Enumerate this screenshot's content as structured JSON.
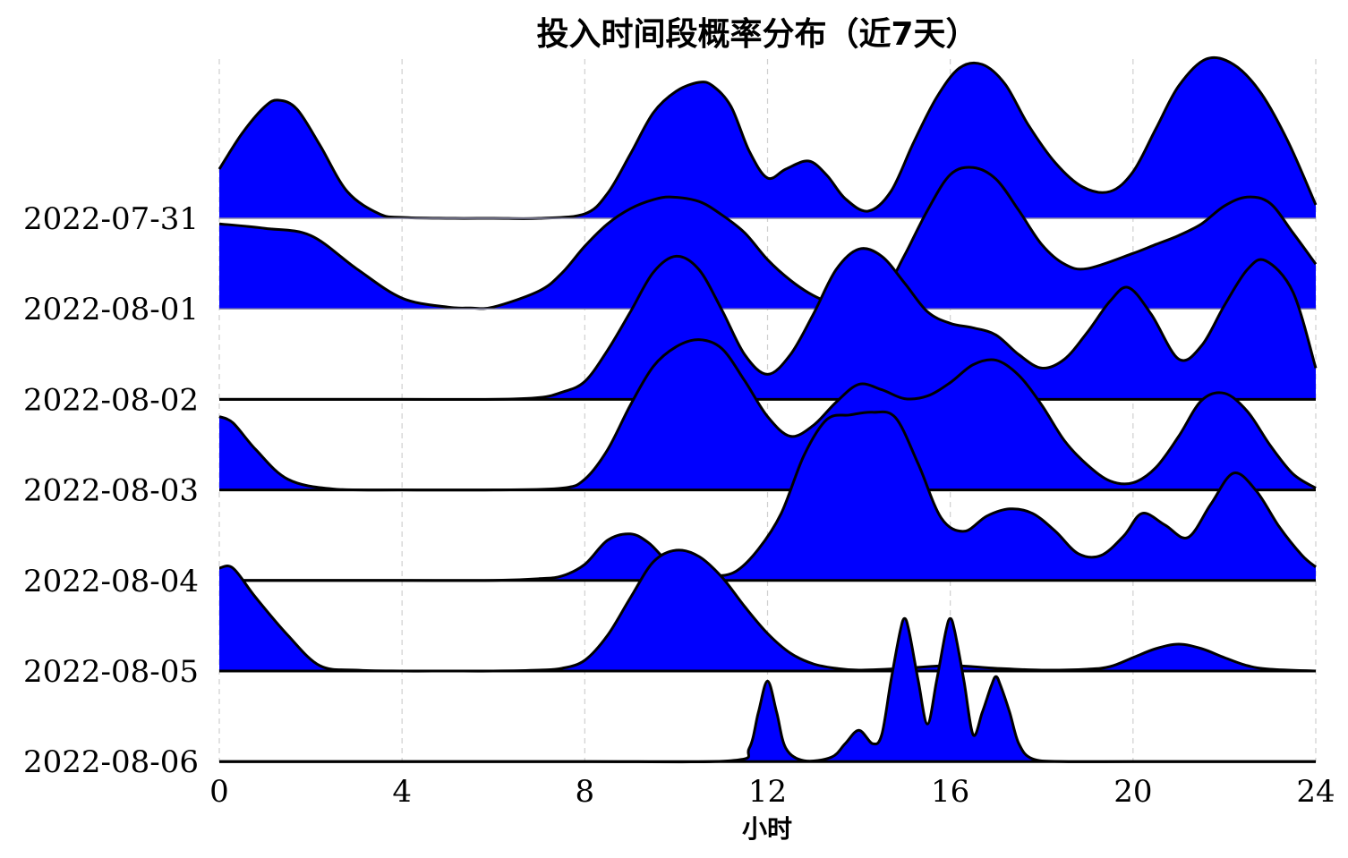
{
  "chart_data": {
    "type": "ridgeline",
    "title": "投入时间段概率分布（近7天）",
    "xlabel": "小时",
    "ylabel": "",
    "xlim": [
      0,
      24
    ],
    "x_ticks": [
      0,
      4,
      8,
      12,
      16,
      20,
      24
    ],
    "grid": "vertical dashed",
    "fill_color": "#0000ff",
    "line_color": "#000000",
    "series": [
      {
        "name": "2022-07-31",
        "x": [
          0,
          0.5,
          1,
          1.3,
          1.7,
          2.2,
          2.8,
          3.5,
          4,
          5,
          6,
          7,
          8,
          8.5,
          9,
          9.5,
          10,
          10.5,
          10.8,
          11.2,
          11.6,
          12,
          12.4,
          12.9,
          13.3,
          13.7,
          14.2,
          14.7,
          15.2,
          15.7,
          16.2,
          16.7,
          17.2,
          17.7,
          18.3,
          18.9,
          19.5,
          20,
          20.5,
          21,
          21.6,
          22.2,
          22.8,
          23.4,
          24
        ],
        "y": [
          0.55,
          0.95,
          1.25,
          1.32,
          1.22,
          0.82,
          0.3,
          0.05,
          0.01,
          0,
          0,
          0,
          0.05,
          0.28,
          0.72,
          1.18,
          1.42,
          1.52,
          1.48,
          1.25,
          0.75,
          0.45,
          0.55,
          0.64,
          0.48,
          0.22,
          0.08,
          0.3,
          0.85,
          1.35,
          1.68,
          1.72,
          1.5,
          1.05,
          0.62,
          0.35,
          0.3,
          0.52,
          1.0,
          1.48,
          1.78,
          1.72,
          1.4,
          0.85,
          0.15
        ]
      },
      {
        "name": "2022-08-01",
        "x": [
          0,
          1,
          2,
          3,
          4,
          5,
          5.5,
          6,
          7,
          7.5,
          8,
          8.5,
          9,
          9.5,
          9.9,
          10.5,
          11,
          11.5,
          12,
          12.5,
          13,
          13.5,
          14,
          14.5,
          15,
          15.5,
          16,
          16.5,
          17,
          17.5,
          18,
          18.5,
          19,
          20,
          20.5,
          21,
          21.5,
          22,
          22.5,
          23,
          23.5,
          24
        ],
        "y": [
          0.95,
          0.9,
          0.82,
          0.45,
          0.12,
          0.02,
          0.01,
          0.02,
          0.2,
          0.4,
          0.7,
          0.95,
          1.12,
          1.22,
          1.25,
          1.2,
          1.05,
          0.85,
          0.55,
          0.32,
          0.15,
          0.05,
          0.05,
          0.15,
          0.6,
          1.1,
          1.5,
          1.58,
          1.45,
          1.1,
          0.72,
          0.5,
          0.45,
          0.62,
          0.72,
          0.82,
          0.95,
          1.15,
          1.25,
          1.18,
          0.85,
          0.5
        ]
      },
      {
        "name": "2022-08-02",
        "x": [
          0,
          2,
          4,
          6,
          7,
          7.5,
          8,
          8.5,
          9,
          9.5,
          10,
          10.5,
          11,
          11.5,
          12,
          12.5,
          13,
          13.5,
          14,
          14.5,
          15,
          15.5,
          16,
          16.5,
          17,
          17.5,
          18,
          18.5,
          19,
          19.5,
          19.9,
          20.4,
          21,
          21.5,
          22,
          22.5,
          22.9,
          23.5,
          24
        ],
        "y": [
          0,
          0,
          0,
          0,
          0.02,
          0.08,
          0.2,
          0.55,
          0.98,
          1.42,
          1.6,
          1.45,
          1.0,
          0.5,
          0.28,
          0.5,
          0.95,
          1.45,
          1.68,
          1.6,
          1.3,
          0.98,
          0.85,
          0.8,
          0.72,
          0.5,
          0.35,
          0.45,
          0.75,
          1.1,
          1.25,
          0.95,
          0.45,
          0.6,
          1.05,
          1.45,
          1.55,
          1.2,
          0.35
        ]
      },
      {
        "name": "2022-08-03",
        "x": [
          0,
          0.3,
          0.8,
          1.5,
          2.5,
          4,
          6,
          7.5,
          8,
          8.5,
          9,
          9.5,
          10,
          10.5,
          11,
          11.5,
          12,
          12.5,
          13,
          13.5,
          14,
          14.5,
          15,
          15.5,
          16,
          16.5,
          17,
          17.5,
          18,
          18.5,
          19,
          19.5,
          20,
          20.5,
          21,
          21.5,
          22,
          22.5,
          23,
          23.5,
          24
        ],
        "y": [
          0.82,
          0.75,
          0.45,
          0.12,
          0.01,
          0,
          0,
          0.02,
          0.12,
          0.45,
          0.95,
          1.38,
          1.6,
          1.68,
          1.58,
          1.22,
          0.82,
          0.6,
          0.72,
          0.98,
          1.18,
          1.12,
          1.02,
          1.05,
          1.2,
          1.4,
          1.45,
          1.28,
          0.95,
          0.55,
          0.28,
          0.1,
          0.08,
          0.25,
          0.6,
          1.0,
          1.08,
          0.88,
          0.5,
          0.18,
          0.02
        ]
      },
      {
        "name": "2022-08-04",
        "x": [
          0,
          2,
          4,
          6,
          7,
          7.5,
          8,
          8.5,
          9,
          9.4,
          9.8,
          10.3,
          10.8,
          11.3,
          11.8,
          12.3,
          12.8,
          13.3,
          13.8,
          14.3,
          14.8,
          15.3,
          15.8,
          16.3,
          16.8,
          17.3,
          17.8,
          18.3,
          18.8,
          19.3,
          19.8,
          20.2,
          20.7,
          21.2,
          21.7,
          22.2,
          22.7,
          23.2,
          23.7,
          24
        ],
        "y": [
          0,
          0,
          0,
          0,
          0.02,
          0.05,
          0.18,
          0.45,
          0.52,
          0.42,
          0.22,
          0.08,
          0.05,
          0.1,
          0.35,
          0.75,
          1.4,
          1.8,
          1.85,
          1.88,
          1.82,
          1.3,
          0.7,
          0.55,
          0.72,
          0.8,
          0.75,
          0.55,
          0.3,
          0.28,
          0.5,
          0.75,
          0.62,
          0.48,
          0.85,
          1.2,
          1.0,
          0.6,
          0.28,
          0.15
        ]
      },
      {
        "name": "2022-08-05",
        "x": [
          0,
          0.3,
          0.8,
          1.5,
          2.2,
          3,
          4,
          5,
          6,
          7,
          7.5,
          8,
          8.5,
          9,
          9.5,
          10,
          10.5,
          11,
          11.5,
          12,
          12.5,
          13,
          13.5,
          14,
          15,
          16,
          17,
          18,
          19,
          19.5,
          20,
          20.5,
          21,
          21.5,
          22,
          22.5,
          23,
          24
        ],
        "y": [
          1.15,
          1.15,
          0.82,
          0.4,
          0.06,
          0.01,
          0,
          0,
          0,
          0.01,
          0.03,
          0.12,
          0.4,
          0.82,
          1.22,
          1.35,
          1.28,
          1.05,
          0.72,
          0.42,
          0.2,
          0.08,
          0.03,
          0.01,
          0.03,
          0.06,
          0.03,
          0.01,
          0.02,
          0.05,
          0.15,
          0.25,
          0.3,
          0.25,
          0.15,
          0.06,
          0.02,
          0
        ]
      },
      {
        "name": "2022-08-06",
        "x": [
          0,
          4,
          8,
          11.2,
          11.6,
          11.8,
          12,
          12.2,
          12.4,
          12.8,
          13.4,
          13.7,
          14,
          14.3,
          14.5,
          14.7,
          14.9,
          15,
          15.1,
          15.3,
          15.5,
          15.7,
          15.9,
          16,
          16.1,
          16.3,
          16.5,
          16.7,
          16.9,
          17,
          17.1,
          17.3,
          17.5,
          17.8,
          18.5,
          20,
          24
        ],
        "y": [
          0,
          0,
          0,
          0.01,
          0.15,
          0.55,
          0.9,
          0.55,
          0.15,
          0.01,
          0.05,
          0.2,
          0.35,
          0.2,
          0.3,
          0.9,
          1.45,
          1.6,
          1.45,
          0.9,
          0.42,
          0.9,
          1.45,
          1.6,
          1.45,
          0.9,
          0.3,
          0.55,
          0.85,
          0.95,
          0.85,
          0.55,
          0.2,
          0.03,
          0,
          0,
          0
        ]
      }
    ]
  }
}
